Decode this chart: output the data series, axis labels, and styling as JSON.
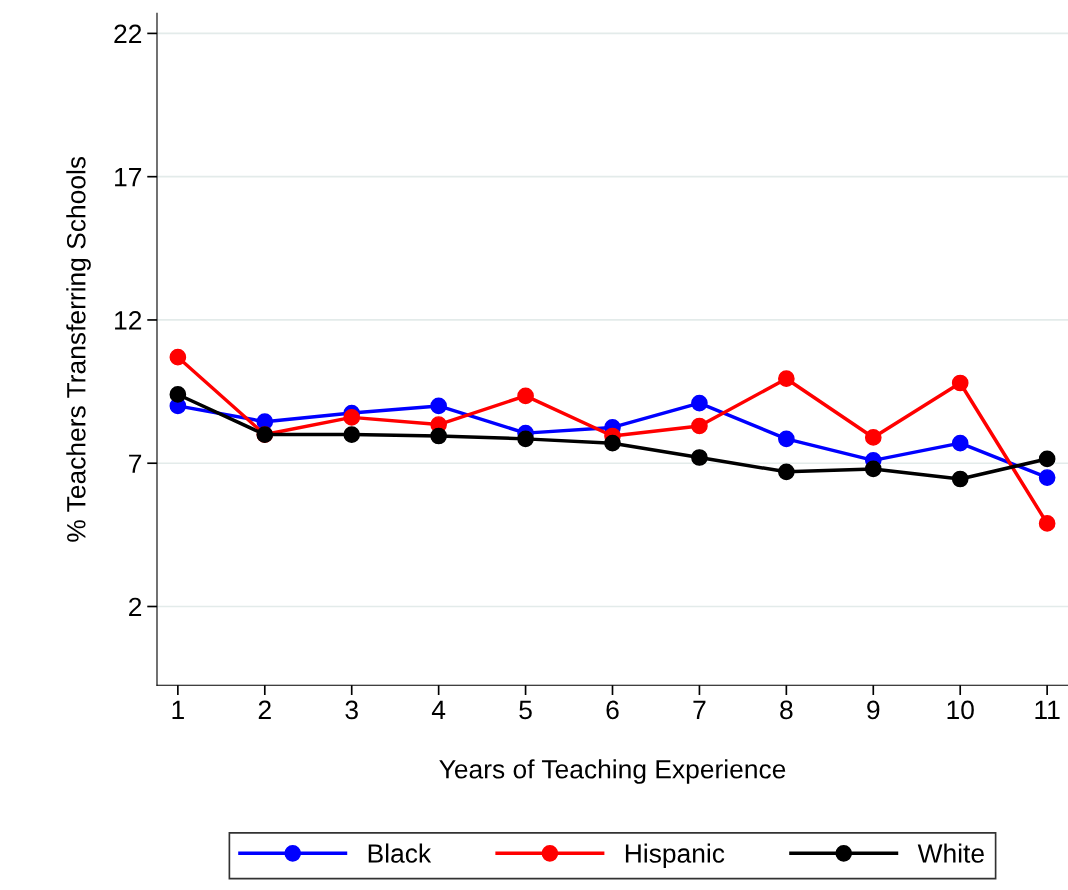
{
  "chart_data": {
    "type": "line",
    "xlabel": "Years of Teaching Experience",
    "ylabel": "% Teachers Transferring Schools",
    "x": [
      1,
      2,
      3,
      4,
      5,
      6,
      7,
      8,
      9,
      10,
      11
    ],
    "xlim": [
      0.76,
      11.24
    ],
    "xticks": [
      1,
      2,
      3,
      4,
      5,
      6,
      7,
      8,
      9,
      10,
      11
    ],
    "ylim": [
      -0.75,
      22.7
    ],
    "yticks": [
      2,
      7,
      12,
      17,
      22
    ],
    "grid": "y",
    "legend": "bottom",
    "marker": "circle",
    "line_style": "solid",
    "series": [
      {
        "name": "Black",
        "color": "#0000ff",
        "values": [
          9.0,
          8.45,
          8.75,
          9.0,
          8.05,
          8.25,
          9.1,
          7.85,
          7.1,
          7.7,
          6.5
        ]
      },
      {
        "name": "Hispanic",
        "color": "#ff0000",
        "values": [
          10.7,
          8.0,
          8.6,
          8.35,
          9.35,
          7.95,
          8.3,
          9.95,
          7.9,
          9.8,
          4.9
        ]
      },
      {
        "name": "White",
        "color": "#000000",
        "values": [
          9.4,
          8.0,
          8.0,
          7.95,
          7.85,
          7.7,
          7.2,
          6.7,
          6.8,
          6.45,
          7.15
        ]
      }
    ]
  }
}
